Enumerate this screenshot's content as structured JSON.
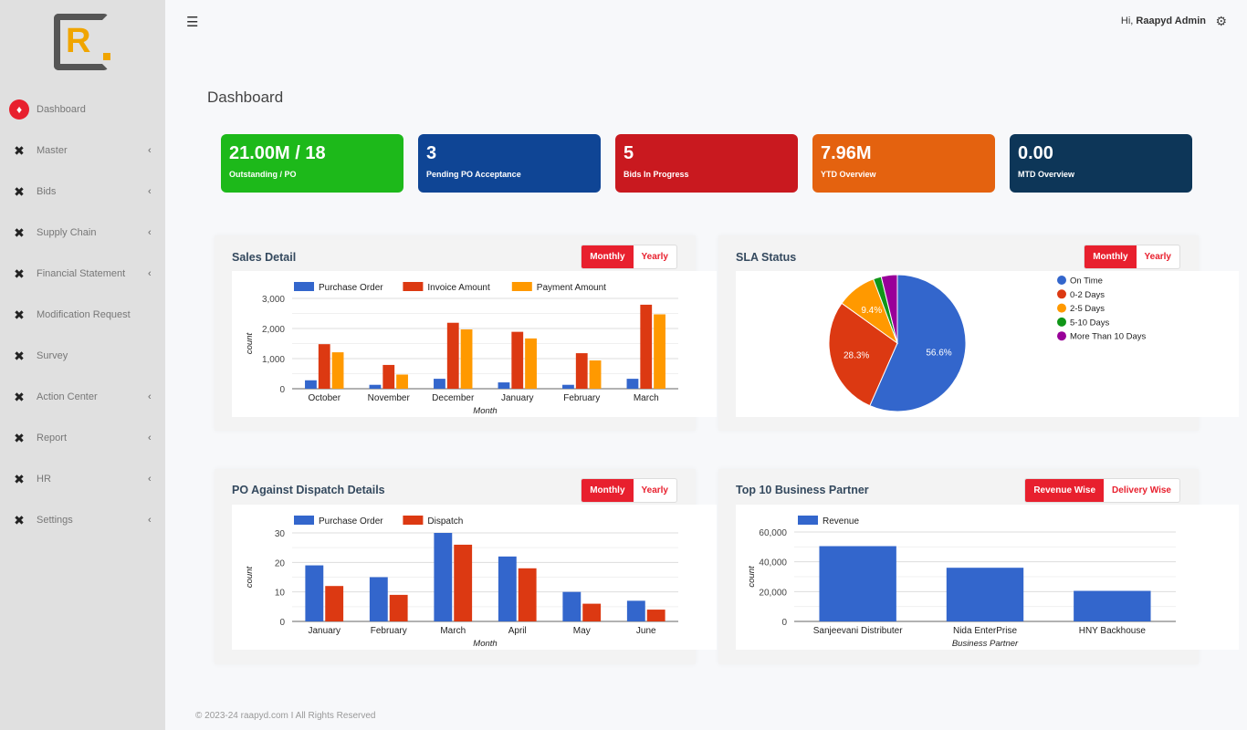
{
  "brand": {
    "logo_letter": "R"
  },
  "sidebar": {
    "items": [
      {
        "label": "Dashboard",
        "icon": "diamond-icon",
        "active": true,
        "chevron": false
      },
      {
        "label": "Master",
        "icon": "network-icon",
        "chevron": true
      },
      {
        "label": "Bids",
        "icon": "network-icon",
        "chevron": true
      },
      {
        "label": "Supply Chain",
        "icon": "network-icon",
        "chevron": true
      },
      {
        "label": "Financial Statement",
        "icon": "network-icon",
        "chevron": true
      },
      {
        "label": "Modification Request",
        "icon": "network-icon",
        "chevron": false
      },
      {
        "label": "Survey",
        "icon": "network-icon",
        "chevron": false
      },
      {
        "label": "Action Center",
        "icon": "network-icon",
        "chevron": true
      },
      {
        "label": "Report",
        "icon": "network-icon",
        "chevron": true
      },
      {
        "label": "HR",
        "icon": "network-icon",
        "chevron": true
      },
      {
        "label": "Settings",
        "icon": "network-icon",
        "chevron": true
      }
    ]
  },
  "header": {
    "greeting": "Hi,",
    "user": "Raapyd Admin"
  },
  "page_title": "Dashboard",
  "stats": [
    {
      "value": "21.00M / 18",
      "label": "Outstanding / PO",
      "color": "#1db91a"
    },
    {
      "value": "3",
      "label": "Pending PO Acceptance",
      "color": "#0f4595"
    },
    {
      "value": "5",
      "label": "Bids In Progress",
      "color": "#c9191f"
    },
    {
      "value": "7.96M",
      "label": "YTD Overview",
      "color": "#e4620f"
    },
    {
      "value": "0.00",
      "label": "MTD Overview",
      "color": "#0d3658"
    }
  ],
  "panels": {
    "sales": {
      "title": "Sales Detail",
      "toggle": [
        "Monthly",
        "Yearly"
      ]
    },
    "sla": {
      "title": "SLA Status",
      "toggle": [
        "Monthly",
        "Yearly"
      ]
    },
    "po": {
      "title": "PO Against Dispatch Details",
      "toggle": [
        "Monthly",
        "Yearly"
      ]
    },
    "top": {
      "title": "Top 10 Business Partner",
      "toggle": [
        "Revenue Wise",
        "Delivery Wise"
      ]
    }
  },
  "chart_data": [
    {
      "type": "bar",
      "id": "sales",
      "categories": [
        "October",
        "November",
        "December",
        "January",
        "February",
        "March"
      ],
      "series": [
        {
          "name": "Purchase Order",
          "color": "#3366cc",
          "values": [
            280,
            130,
            330,
            210,
            130,
            330
          ]
        },
        {
          "name": "Invoice Amount",
          "color": "#dc3912",
          "values": [
            1480,
            790,
            2190,
            1890,
            1180,
            2790
          ]
        },
        {
          "name": "Payment Amount",
          "color": "#ff9900",
          "values": [
            1210,
            470,
            1970,
            1670,
            940,
            2470
          ]
        }
      ],
      "xlabel": "Month",
      "ylabel": "count",
      "ylim": [
        0,
        3000
      ],
      "yticks": [
        "0",
        "1,000",
        "2,000",
        "3,000"
      ],
      "grid": true,
      "legend": "top"
    },
    {
      "type": "pie",
      "id": "sla",
      "labels": [
        "On Time",
        "0-2 Days",
        "2-5 Days",
        "5-10 Days",
        "More Than 10 Days"
      ],
      "values": [
        56.6,
        28.3,
        9.4,
        1.9,
        3.8
      ],
      "slice_labels": [
        "56.6%",
        "28.3%",
        "9.4%",
        "",
        ""
      ],
      "colors": [
        "#3366cc",
        "#dc3912",
        "#ff9900",
        "#109618",
        "#990099"
      ],
      "legend": "right"
    },
    {
      "type": "bar",
      "id": "po",
      "categories": [
        "January",
        "February",
        "March",
        "April",
        "May",
        "June"
      ],
      "series": [
        {
          "name": "Purchase Order",
          "color": "#3366cc",
          "values": [
            19,
            15,
            30,
            22,
            10,
            7
          ]
        },
        {
          "name": "Dispatch",
          "color": "#dc3912",
          "values": [
            12,
            9,
            26,
            18,
            6,
            4
          ]
        }
      ],
      "xlabel": "Month",
      "ylabel": "count",
      "ylim": [
        0,
        30
      ],
      "yticks": [
        "0",
        "10",
        "20",
        "30"
      ],
      "grid": true,
      "legend": "top"
    },
    {
      "type": "bar",
      "id": "top",
      "categories": [
        "Sanjeevani Distributer",
        "Nida EnterPrise",
        "HNY Backhouse"
      ],
      "series": [
        {
          "name": "Revenue",
          "color": "#3366cc",
          "values": [
            50500,
            36000,
            20500
          ]
        }
      ],
      "xlabel": "Business Partner",
      "ylabel": "count",
      "ylim": [
        0,
        60000
      ],
      "yticks": [
        "0",
        "20,000",
        "40,000",
        "60,000"
      ],
      "grid": true,
      "legend": "top"
    }
  ],
  "footer": "© 2023-24 raapyd.com I All Rights Reserved"
}
